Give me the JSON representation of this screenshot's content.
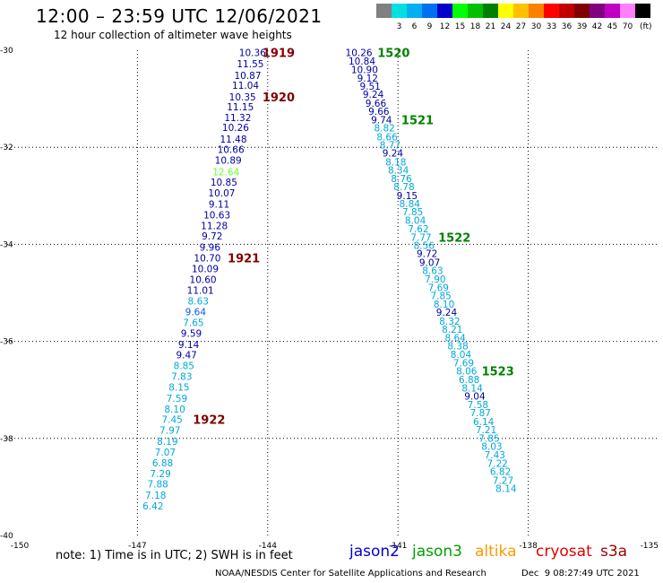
{
  "header": {
    "title": "12:00 – 23:59 UTC 12/06/2021",
    "subtitle": "12 hour collection of altimeter wave heights"
  },
  "legend": {
    "unit": "(ft)",
    "bins": [
      {
        "label": "",
        "color": "#808080"
      },
      {
        "label": "3",
        "color": "#00e0e0"
      },
      {
        "label": "6",
        "color": "#00b0f0"
      },
      {
        "label": "9",
        "color": "#0070f0"
      },
      {
        "label": "12",
        "color": "#0000c8"
      },
      {
        "label": "15",
        "color": "#00ff00"
      },
      {
        "label": "18",
        "color": "#00c000"
      },
      {
        "label": "21",
        "color": "#008000"
      },
      {
        "label": "24",
        "color": "#ffff00"
      },
      {
        "label": "27",
        "color": "#ffc000"
      },
      {
        "label": "30",
        "color": "#ff8000"
      },
      {
        "label": "33",
        "color": "#ff0000"
      },
      {
        "label": "36",
        "color": "#c00000"
      },
      {
        "label": "39",
        "color": "#800000"
      },
      {
        "label": "42",
        "color": "#800080"
      },
      {
        "label": "45",
        "color": "#c000c0"
      },
      {
        "label": "70",
        "color": "#ff80ff"
      },
      {
        "label": "",
        "color": "#000000"
      }
    ]
  },
  "chart_data": {
    "type": "scatter",
    "title": "12:00 – 23:59 UTC 12/06/2021",
    "subtitle": "12 hour collection of altimeter wave heights",
    "xlim": [
      -150,
      -135
    ],
    "ylim": [
      -40,
      -30
    ],
    "x_ticks": [
      "-150",
      "-147",
      "-144",
      "-141",
      "-138",
      "-135"
    ],
    "y_ticks": [
      "-30",
      "-32",
      "-34",
      "-36",
      "-38",
      "-40"
    ],
    "grid": true,
    "value_colors": {
      "dark": "#0000a0",
      "mid": "#0060e0",
      "light": "#00a8d8",
      "highlight": "#66ff33"
    },
    "time_label_colors": {
      "left": "#800000",
      "right": "#008000"
    },
    "series": [
      {
        "name": "jason2",
        "points": [
          {
            "x": -144.35,
            "y": -30.05,
            "v": "10.36",
            "c": "dark"
          },
          {
            "x": -144.4,
            "y": -30.28,
            "v": "11.55",
            "c": "dark"
          },
          {
            "x": -144.46,
            "y": -30.52,
            "v": "10.87",
            "c": "dark"
          },
          {
            "x": -144.51,
            "y": -30.72,
            "v": "11.04",
            "c": "dark"
          },
          {
            "x": -144.58,
            "y": -30.96,
            "v": "10.35",
            "c": "dark"
          },
          {
            "x": -144.63,
            "y": -31.16,
            "v": "11.15",
            "c": "dark"
          },
          {
            "x": -144.69,
            "y": -31.39,
            "v": "11.32",
            "c": "dark"
          },
          {
            "x": -144.74,
            "y": -31.59,
            "v": "10.26",
            "c": "dark"
          },
          {
            "x": -144.79,
            "y": -31.83,
            "v": "11.48",
            "c": "dark"
          },
          {
            "x": -144.85,
            "y": -32.04,
            "v": "10.66",
            "c": "dark"
          },
          {
            "x": -144.91,
            "y": -32.26,
            "v": "10.89",
            "c": "dark"
          },
          {
            "x": -144.96,
            "y": -32.5,
            "v": "12.64",
            "c": "highlight"
          },
          {
            "x": -145.01,
            "y": -32.72,
            "v": "10.85",
            "c": "dark"
          },
          {
            "x": -145.06,
            "y": -32.94,
            "v": "10.07",
            "c": "dark"
          },
          {
            "x": -145.12,
            "y": -33.17,
            "v": "9.11",
            "c": "dark"
          },
          {
            "x": -145.17,
            "y": -33.39,
            "v": "10.63",
            "c": "dark"
          },
          {
            "x": -145.23,
            "y": -33.61,
            "v": "11.28",
            "c": "dark"
          },
          {
            "x": -145.28,
            "y": -33.83,
            "v": "9.72",
            "c": "dark"
          },
          {
            "x": -145.33,
            "y": -34.06,
            "v": "9.96",
            "c": "dark"
          },
          {
            "x": -145.39,
            "y": -34.28,
            "v": "10.70",
            "c": "dark"
          },
          {
            "x": -145.44,
            "y": -34.5,
            "v": "10.09",
            "c": "dark"
          },
          {
            "x": -145.49,
            "y": -34.72,
            "v": "10.60",
            "c": "dark"
          },
          {
            "x": -145.55,
            "y": -34.94,
            "v": "11.01",
            "c": "dark"
          },
          {
            "x": -145.6,
            "y": -35.17,
            "v": "8.63",
            "c": "light"
          },
          {
            "x": -145.66,
            "y": -35.39,
            "v": "9.64",
            "c": "mid"
          },
          {
            "x": -145.71,
            "y": -35.61,
            "v": "7.65",
            "c": "light"
          },
          {
            "x": -145.76,
            "y": -35.83,
            "v": "9.59",
            "c": "dark"
          },
          {
            "x": -145.82,
            "y": -36.06,
            "v": "9.14",
            "c": "dark"
          },
          {
            "x": -145.87,
            "y": -36.28,
            "v": "9.47",
            "c": "dark"
          },
          {
            "x": -145.93,
            "y": -36.5,
            "v": "8.85",
            "c": "light"
          },
          {
            "x": -145.98,
            "y": -36.72,
            "v": "7.83",
            "c": "light"
          },
          {
            "x": -146.04,
            "y": -36.94,
            "v": "8.15",
            "c": "light"
          },
          {
            "x": -146.09,
            "y": -37.17,
            "v": "7.59",
            "c": "light"
          },
          {
            "x": -146.14,
            "y": -37.39,
            "v": "8.10",
            "c": "light"
          },
          {
            "x": -146.2,
            "y": -37.61,
            "v": "7.45",
            "c": "light"
          },
          {
            "x": -146.25,
            "y": -37.83,
            "v": "7.97",
            "c": "light"
          },
          {
            "x": -146.31,
            "y": -38.06,
            "v": "8.19",
            "c": "light"
          },
          {
            "x": -146.36,
            "y": -38.28,
            "v": "7.07",
            "c": "light"
          },
          {
            "x": -146.42,
            "y": -38.5,
            "v": "6.88",
            "c": "light"
          },
          {
            "x": -146.47,
            "y": -38.72,
            "v": "7.29",
            "c": "light"
          },
          {
            "x": -146.53,
            "y": -38.94,
            "v": "7.88",
            "c": "light"
          },
          {
            "x": -146.58,
            "y": -39.17,
            "v": "7.18",
            "c": "light"
          },
          {
            "x": -146.64,
            "y": -39.39,
            "v": "6.42",
            "c": "light"
          }
        ],
        "time_labels": [
          {
            "text": "1919",
            "x": -143.75,
            "y": -30.05
          },
          {
            "text": "1920",
            "x": -143.75,
            "y": -30.96
          },
          {
            "text": "1921",
            "x": -144.55,
            "y": -34.28
          },
          {
            "text": "1922",
            "x": -145.35,
            "y": -37.61
          }
        ]
      },
      {
        "name": "jason3",
        "points": [
          {
            "x": -141.9,
            "y": -30.05,
            "v": "10.26",
            "c": "dark"
          },
          {
            "x": -141.83,
            "y": -30.22,
            "v": "10.84",
            "c": "dark"
          },
          {
            "x": -141.77,
            "y": -30.4,
            "v": "10.90",
            "c": "dark"
          },
          {
            "x": -141.7,
            "y": -30.57,
            "v": "9.12",
            "c": "dark"
          },
          {
            "x": -141.64,
            "y": -30.74,
            "v": "9.51",
            "c": "dark"
          },
          {
            "x": -141.57,
            "y": -30.91,
            "v": "9.24",
            "c": "dark"
          },
          {
            "x": -141.51,
            "y": -31.09,
            "v": "9.66",
            "c": "dark"
          },
          {
            "x": -141.44,
            "y": -31.26,
            "v": "9.66",
            "c": "dark"
          },
          {
            "x": -141.38,
            "y": -31.43,
            "v": "9.74",
            "c": "dark"
          },
          {
            "x": -141.31,
            "y": -31.6,
            "v": "8.82",
            "c": "light"
          },
          {
            "x": -141.25,
            "y": -31.78,
            "v": "8.66",
            "c": "light"
          },
          {
            "x": -141.18,
            "y": -31.95,
            "v": "8.77",
            "c": "light"
          },
          {
            "x": -141.12,
            "y": -32.12,
            "v": "9.24",
            "c": "dark"
          },
          {
            "x": -141.05,
            "y": -32.3,
            "v": "8.18",
            "c": "light"
          },
          {
            "x": -140.99,
            "y": -32.47,
            "v": "8.34",
            "c": "light"
          },
          {
            "x": -140.92,
            "y": -32.64,
            "v": "8.76",
            "c": "light"
          },
          {
            "x": -140.86,
            "y": -32.81,
            "v": "8.78",
            "c": "light"
          },
          {
            "x": -140.79,
            "y": -32.99,
            "v": "9.15",
            "c": "dark"
          },
          {
            "x": -140.73,
            "y": -33.16,
            "v": "8.84",
            "c": "light"
          },
          {
            "x": -140.66,
            "y": -33.33,
            "v": "7.85",
            "c": "light"
          },
          {
            "x": -140.6,
            "y": -33.5,
            "v": "8.04",
            "c": "light"
          },
          {
            "x": -140.53,
            "y": -33.68,
            "v": "7.62",
            "c": "light"
          },
          {
            "x": -140.47,
            "y": -33.85,
            "v": "7.77",
            "c": "light"
          },
          {
            "x": -140.4,
            "y": -34.02,
            "v": "8.56",
            "c": "light"
          },
          {
            "x": -140.33,
            "y": -34.19,
            "v": "9.72",
            "c": "dark"
          },
          {
            "x": -140.27,
            "y": -34.37,
            "v": "9.07",
            "c": "dark"
          },
          {
            "x": -140.2,
            "y": -34.54,
            "v": "8.63",
            "c": "light"
          },
          {
            "x": -140.14,
            "y": -34.71,
            "v": "7.90",
            "c": "light"
          },
          {
            "x": -140.07,
            "y": -34.89,
            "v": "7.69",
            "c": "light"
          },
          {
            "x": -140.01,
            "y": -35.06,
            "v": "7.85",
            "c": "light"
          },
          {
            "x": -139.94,
            "y": -35.23,
            "v": "8.10",
            "c": "light"
          },
          {
            "x": -139.88,
            "y": -35.4,
            "v": "9.24",
            "c": "dark"
          },
          {
            "x": -139.81,
            "y": -35.58,
            "v": "8.32",
            "c": "light"
          },
          {
            "x": -139.75,
            "y": -35.75,
            "v": "8.21",
            "c": "light"
          },
          {
            "x": -139.68,
            "y": -35.92,
            "v": "8.64",
            "c": "light"
          },
          {
            "x": -139.62,
            "y": -36.09,
            "v": "8.38",
            "c": "light"
          },
          {
            "x": -139.55,
            "y": -36.27,
            "v": "8.04",
            "c": "light"
          },
          {
            "x": -139.49,
            "y": -36.44,
            "v": "7.69",
            "c": "light"
          },
          {
            "x": -139.42,
            "y": -36.61,
            "v": "8.06",
            "c": "light"
          },
          {
            "x": -139.36,
            "y": -36.78,
            "v": "6.88",
            "c": "light"
          },
          {
            "x": -139.29,
            "y": -36.96,
            "v": "8.14",
            "c": "light"
          },
          {
            "x": -139.23,
            "y": -37.13,
            "v": "9.04",
            "c": "dark"
          },
          {
            "x": -139.16,
            "y": -37.3,
            "v": "7.58",
            "c": "light"
          },
          {
            "x": -139.1,
            "y": -37.47,
            "v": "7.87",
            "c": "light"
          },
          {
            "x": -139.03,
            "y": -37.65,
            "v": "6.14",
            "c": "light"
          },
          {
            "x": -138.97,
            "y": -37.82,
            "v": "7.21",
            "c": "light"
          },
          {
            "x": -138.9,
            "y": -37.99,
            "v": "7.85",
            "c": "light"
          },
          {
            "x": -138.84,
            "y": -38.16,
            "v": "8.03",
            "c": "light"
          },
          {
            "x": -138.77,
            "y": -38.34,
            "v": "7.43",
            "c": "light"
          },
          {
            "x": -138.71,
            "y": -38.51,
            "v": "7.22",
            "c": "light"
          },
          {
            "x": -138.64,
            "y": -38.68,
            "v": "6.82",
            "c": "light"
          },
          {
            "x": -138.58,
            "y": -38.86,
            "v": "7.27",
            "c": "light"
          },
          {
            "x": -138.51,
            "y": -39.03,
            "v": "8.14",
            "c": "light"
          }
        ],
        "time_labels": [
          {
            "text": "1520",
            "x": -141.1,
            "y": -30.05
          },
          {
            "text": "1521",
            "x": -140.55,
            "y": -31.43
          },
          {
            "text": "1522",
            "x": -139.7,
            "y": -33.85
          },
          {
            "text": "1523",
            "x": -138.7,
            "y": -36.61
          }
        ]
      }
    ]
  },
  "footer": {
    "note": "note: 1) Time is in UTC; 2) SWH is in feet",
    "satellites": [
      {
        "name": "jason2",
        "color": "#0000d0"
      },
      {
        "name": "jason3",
        "color": "#00a000"
      },
      {
        "name": "altika",
        "color": "#ff9900"
      },
      {
        "name": "cryosat",
        "color": "#e00000"
      },
      {
        "name": "s3a",
        "color": "#990000"
      }
    ],
    "credit": "NOAA/NESDIS Center for Satellite Applications and Research",
    "timestamp": "Dec  9 08:27:49 UTC 2021"
  }
}
